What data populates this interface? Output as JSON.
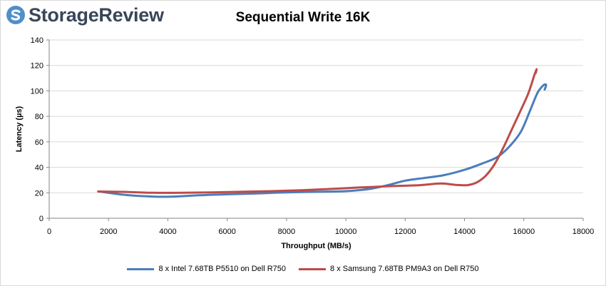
{
  "logo": {
    "text": "StorageReview"
  },
  "colors": {
    "series1": "#4a7ebb",
    "series2": "#be4b48",
    "grid": "#d9d9d9",
    "logo_icon": "#4f8fca"
  },
  "chart_data": {
    "type": "line",
    "title": "Sequential Write 16K",
    "xlabel": "Throughput (MB/s)",
    "ylabel": "Latency (µs)",
    "xlim": [
      0,
      18000
    ],
    "ylim": [
      0,
      140
    ],
    "xticks": [
      0,
      2000,
      4000,
      6000,
      8000,
      10000,
      12000,
      14000,
      16000,
      18000
    ],
    "yticks": [
      0,
      20,
      40,
      60,
      80,
      100,
      120,
      140
    ],
    "grid": "horizontal",
    "legend_position": "bottom",
    "series": [
      {
        "name": "8 x Intel 7.68TB P5510 on Dell R750",
        "color": "#4a7ebb",
        "points": [
          [
            1700,
            21
          ],
          [
            2500,
            18.5
          ],
          [
            3500,
            17
          ],
          [
            4200,
            17
          ],
          [
            5000,
            18
          ],
          [
            6000,
            18.8
          ],
          [
            7000,
            19.5
          ],
          [
            8000,
            20.3
          ],
          [
            9000,
            20.8
          ],
          [
            10000,
            21.3
          ],
          [
            10800,
            23
          ],
          [
            11500,
            26.5
          ],
          [
            12000,
            29.5
          ],
          [
            12600,
            31.5
          ],
          [
            13300,
            33.8
          ],
          [
            14000,
            38
          ],
          [
            14600,
            43
          ],
          [
            15100,
            48
          ],
          [
            15500,
            56
          ],
          [
            15900,
            68
          ],
          [
            16200,
            84
          ],
          [
            16450,
            98
          ],
          [
            16600,
            103
          ],
          [
            16700,
            105
          ],
          [
            16750,
            104.5
          ],
          [
            16700,
            101
          ]
        ]
      },
      {
        "name": "8 x Samsung 7.68TB PM9A3 on Dell R750",
        "color": "#be4b48",
        "points": [
          [
            1650,
            21
          ],
          [
            2500,
            20.7
          ],
          [
            3500,
            20
          ],
          [
            4500,
            20
          ],
          [
            5500,
            20.3
          ],
          [
            6500,
            20.8
          ],
          [
            7500,
            21.3
          ],
          [
            8500,
            22
          ],
          [
            9500,
            23
          ],
          [
            10500,
            24.2
          ],
          [
            11500,
            25.2
          ],
          [
            12500,
            26
          ],
          [
            13200,
            27.3
          ],
          [
            13700,
            26.2
          ],
          [
            14100,
            26
          ],
          [
            14400,
            28
          ],
          [
            14700,
            33
          ],
          [
            15000,
            42
          ],
          [
            15300,
            55
          ],
          [
            15600,
            70
          ],
          [
            15900,
            85
          ],
          [
            16150,
            98
          ],
          [
            16350,
            112
          ],
          [
            16430,
            117
          ],
          [
            16400,
            114
          ]
        ]
      }
    ]
  }
}
